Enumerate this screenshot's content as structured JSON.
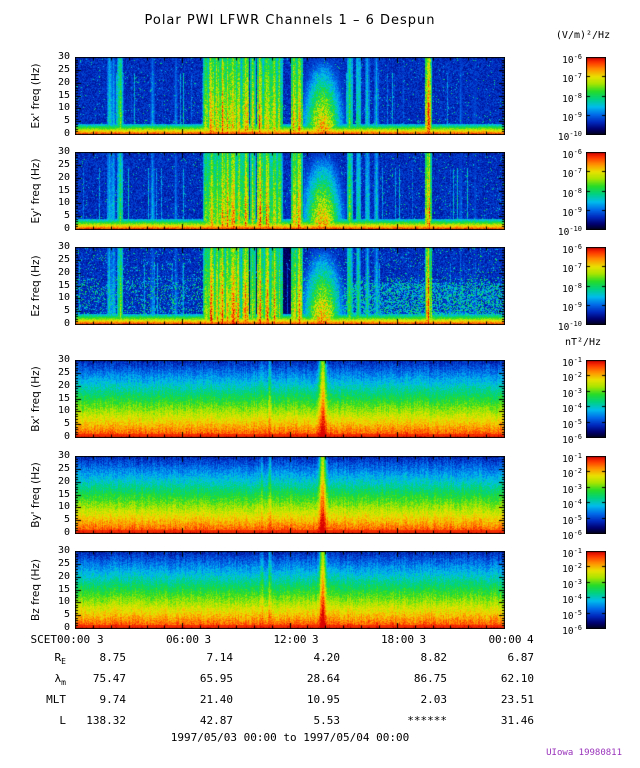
{
  "title": "Polar PWI LFWR Channels 1 – 6 Despun",
  "footer": "1997/05/03 00:00 to 1997/05/04 00:00",
  "credit": "UIowa 19980811",
  "colors": {
    "background": "#ffffff",
    "credit": "#9933bb"
  },
  "chart_data": {
    "type": "heatmap",
    "subtype": "time-frequency spectrogram, 6 stacked panels (3 electric, 3 magnetic)",
    "time_range": {
      "start": "1997/05/03 00:00",
      "end": "1997/05/04 00:00"
    },
    "x_axis": {
      "label": "SCET",
      "ticks": [
        {
          "time": "00:00",
          "day": "3"
        },
        {
          "time": "06:00",
          "day": "3"
        },
        {
          "time": "12:00",
          "day": "3"
        },
        {
          "time": "18:00",
          "day": "3"
        },
        {
          "time": "00:00",
          "day": "4"
        }
      ]
    },
    "y_axis": {
      "range": [
        0,
        30
      ],
      "ticks": [
        0,
        5,
        10,
        15,
        20,
        25,
        30
      ],
      "unit": "Hz"
    },
    "colorbars": {
      "electric": {
        "title": "(V/m)²/Hz",
        "base": "10",
        "tick_exponents": [
          "-6",
          "-7",
          "-8",
          "-9",
          "-10"
        ]
      },
      "magnetic": {
        "title": "nT²/Hz",
        "base": "10",
        "tick_exponents": [
          "-1",
          "-2",
          "-3",
          "-4",
          "-5",
          "-6"
        ]
      }
    },
    "panels": [
      {
        "label": "Ex' freq (Hz)",
        "kind": "E",
        "seed": 11,
        "colorbar": "electric"
      },
      {
        "label": "Ey' freq (Hz)",
        "kind": "E",
        "seed": 22,
        "colorbar": "electric"
      },
      {
        "label": "Ez freq (Hz)",
        "kind": "Ez",
        "seed": 33,
        "colorbar": "electric"
      },
      {
        "label": "Bx' freq (Hz)",
        "kind": "B",
        "seed": 44,
        "colorbar": "magnetic"
      },
      {
        "label": "By' freq (Hz)",
        "kind": "B",
        "seed": 55,
        "colorbar": "magnetic"
      },
      {
        "label": "Bz freq (Hz)",
        "kind": "B",
        "seed": 66,
        "colorbar": "magnetic"
      }
    ],
    "features": {
      "e_low_freq_band": "intense red band below ~3 Hz across entire day in E panels",
      "e_broadband_bursts_hours": [
        1.9,
        2.1,
        2.5,
        4.3,
        5.6,
        7.3,
        7.6,
        7.9,
        8.2,
        8.5,
        8.8,
        9.1,
        9.5,
        9.9,
        10.3,
        10.7,
        11.1,
        11.4,
        12.2,
        12.5,
        15.3,
        15.8,
        16.3,
        16.8,
        19.7,
        21.5,
        22.3
      ],
      "e_burst_strengths": [
        0.5,
        0.45,
        0.7,
        0.4,
        0.35,
        0.8,
        1.0,
        0.9,
        1.0,
        0.95,
        1.0,
        0.9,
        1.0,
        0.85,
        1.0,
        0.95,
        0.9,
        0.8,
        0.9,
        0.95,
        0.7,
        0.6,
        0.5,
        0.45,
        1.0,
        0.3,
        0.3
      ],
      "e_main_enhancement": {
        "center_hour": 13.8,
        "halfwidth_hours": 1.1,
        "strength": 0.92
      },
      "ez_low_background_hours": [
        8.0,
        12.1
      ],
      "ez_enhanced_hours": [
        15.0,
        24.0
      ],
      "b_spikes": [
        {
          "hour": 13.8,
          "strength": 0.4,
          "width_hours": 0.18
        },
        {
          "hour": 10.85,
          "strength": 0.14,
          "width_hours": 0.08
        },
        {
          "hour": 10.4,
          "strength": 0.1,
          "width_hours": 0.08
        }
      ],
      "b_low_freq_band": "smooth gradient: red below ~4 Hz, yellow ~5-7 Hz, green ~8-15 Hz, blue above 20 Hz, all day"
    }
  },
  "ephemeris": {
    "rows": [
      {
        "main": "R",
        "sub": "E",
        "values": [
          "8.75",
          "7.14",
          "4.20",
          "8.82",
          "6.87"
        ]
      },
      {
        "main": "λ",
        "sub": "m",
        "values": [
          "75.47",
          "65.95",
          "28.64",
          "86.75",
          "62.10"
        ]
      },
      {
        "main": "MLT",
        "sub": "",
        "values": [
          "9.74",
          "21.40",
          "10.95",
          "2.03",
          "23.51"
        ]
      },
      {
        "main": "L",
        "sub": "",
        "values": [
          "138.32",
          "42.87",
          "5.53",
          "******",
          "31.46"
        ]
      }
    ]
  }
}
